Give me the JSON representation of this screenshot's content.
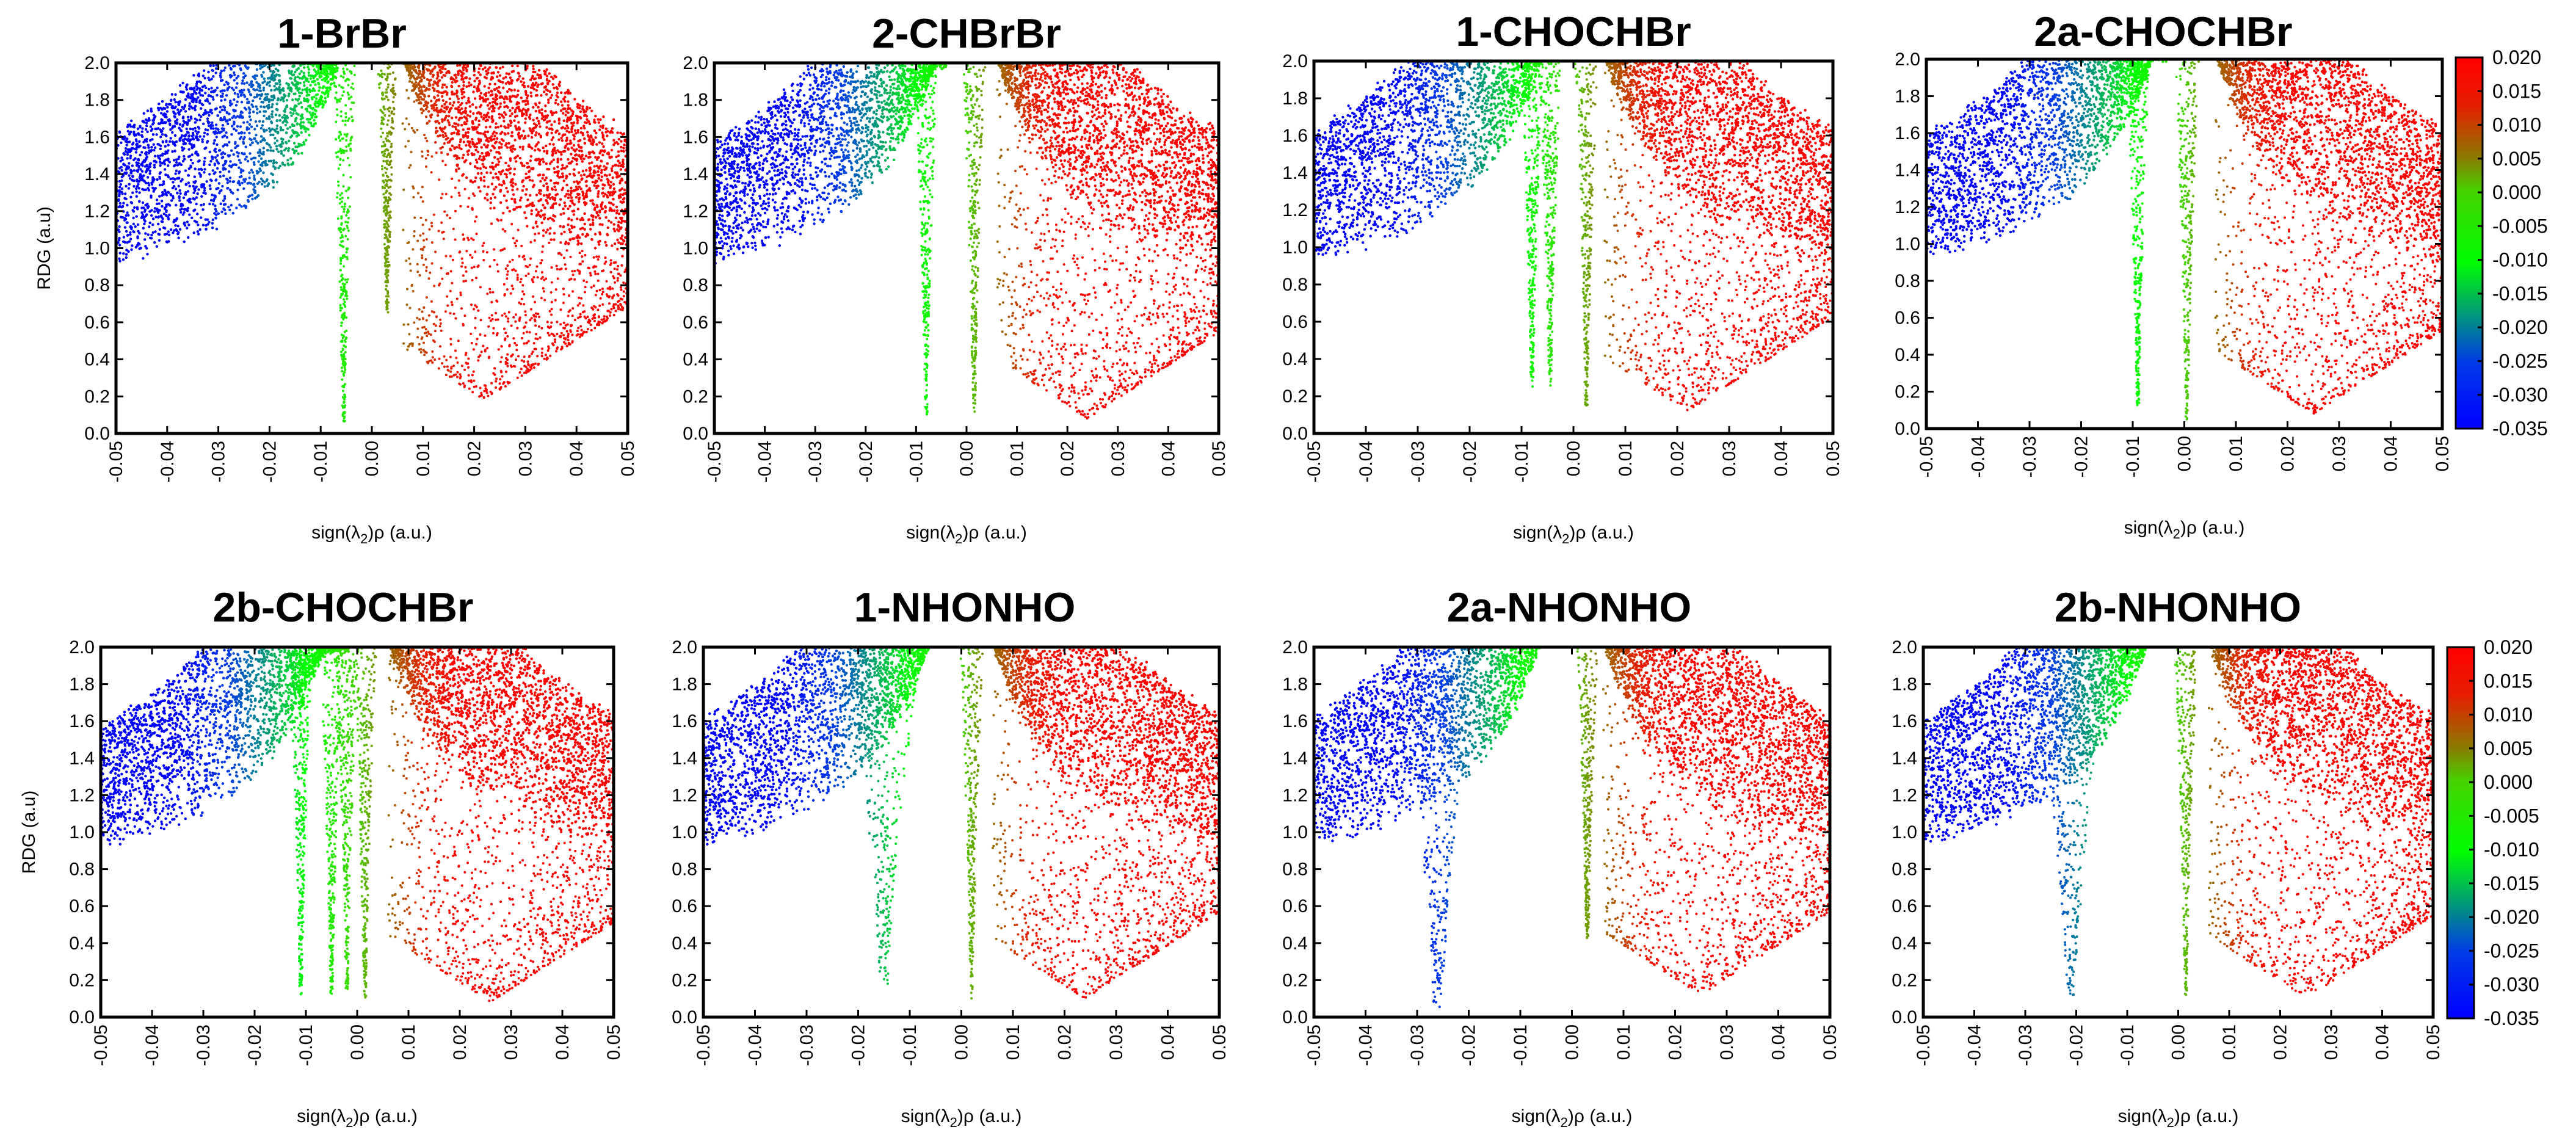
{
  "chart_data": {
    "type": "scatter",
    "description_axis": {
      "xlabel_prefix": "sign(λ",
      "xlabel_sub": "2",
      "xlabel_suffix": ")ρ (a.u.)",
      "ylabel": "RDG (a.u)",
      "xlim": [
        -0.05,
        0.05
      ],
      "ylim": [
        0.0,
        2.0
      ],
      "xticks": [
        "-0.05",
        "-0.04",
        "-0.03",
        "-0.02",
        "-0.01",
        "0.00",
        "0.01",
        "0.02",
        "0.03",
        "0.04",
        "0.05"
      ],
      "yticks": [
        "0.0",
        "0.2",
        "0.4",
        "0.6",
        "0.8",
        "1.0",
        "1.2",
        "1.4",
        "1.6",
        "1.8",
        "2.0"
      ]
    },
    "colorbar": {
      "range": [
        -0.035,
        0.02
      ],
      "labels": [
        "0.020",
        "0.015",
        "0.010",
        "0.005",
        "0.000",
        "-0.005",
        "-0.010",
        "-0.015",
        "-0.020",
        "-0.025",
        "-0.030",
        "-0.035"
      ],
      "colors": {
        "low": "#0000ff",
        "mid": "#00ff00",
        "high": "#ff0000",
        "olive": "#8b7a00"
      }
    },
    "panels": [
      {
        "title": "1-BrBr",
        "spikes": [
          {
            "x": -0.0055,
            "min": 0.05
          },
          {
            "x": 0.003,
            "min": 0.65
          }
        ],
        "neg_edge": -0.0045,
        "pos_edge": 0.001,
        "red_min_x": 0.022,
        "red_min": 0.18,
        "blue_top": 1.45
      },
      {
        "title": "2-CHBrBr",
        "spikes": [
          {
            "x": -0.008,
            "min": 0.1
          },
          {
            "x": 0.0015,
            "min": 0.1
          }
        ],
        "neg_edge": -0.004,
        "pos_edge": 0.0,
        "red_min_x": 0.024,
        "red_min": 0.08,
        "blue_top": 1.3
      },
      {
        "title": "1-CHOCHBr",
        "spikes": [
          {
            "x": -0.008,
            "min": 0.25
          },
          {
            "x": -0.0045,
            "min": 0.25
          },
          {
            "x": 0.0025,
            "min": 0.12
          }
        ],
        "neg_edge": -0.003,
        "pos_edge": 0.0,
        "red_min_x": 0.022,
        "red_min": 0.12,
        "blue_top": 1.45
      },
      {
        "title": "2a-CHOCHBr",
        "spikes": [
          {
            "x": -0.009,
            "min": 0.12
          },
          {
            "x": 0.0005,
            "min": 0.05
          }
        ],
        "neg_edge": -0.003,
        "pos_edge": 0.0,
        "red_min_x": 0.025,
        "red_min": 0.08,
        "blue_top": 1.35
      },
      {
        "title": "2b-CHOCHBr",
        "spikes": [
          {
            "x": -0.011,
            "min": 0.12
          },
          {
            "x": -0.005,
            "min": 0.12
          },
          {
            "x": -0.002,
            "min": 0.15
          },
          {
            "x": 0.0015,
            "min": 0.1
          }
        ],
        "neg_edge": -0.0015,
        "pos_edge": 0.0005,
        "red_min_x": 0.026,
        "red_min": 0.08,
        "blue_top": 1.3
      },
      {
        "title": "1-NHONHO",
        "spikes": [
          {
            "x": -0.015,
            "min": 0.18
          },
          {
            "x": 0.002,
            "min": 0.1
          }
        ],
        "neg_edge": -0.0045,
        "pos_edge": 0.0005,
        "red_min_x": 0.024,
        "red_min": 0.1,
        "blue_top": 1.4
      },
      {
        "title": "2a-NHONHO",
        "spikes": [
          {
            "x": -0.026,
            "min": 0.05
          },
          {
            "x": 0.003,
            "min": 0.4
          }
        ],
        "neg_edge": -0.004,
        "pos_edge": 0.0005,
        "red_min_x": 0.025,
        "red_min": 0.12,
        "blue_top": 1.45
      },
      {
        "title": "2b-NHONHO",
        "spikes": [
          {
            "x": -0.021,
            "min": 0.12
          },
          {
            "x": 0.0015,
            "min": 0.12
          }
        ],
        "neg_edge": -0.004,
        "pos_edge": 0.0005,
        "red_min_x": 0.025,
        "red_min": 0.1,
        "blue_top": 1.4
      }
    ]
  }
}
